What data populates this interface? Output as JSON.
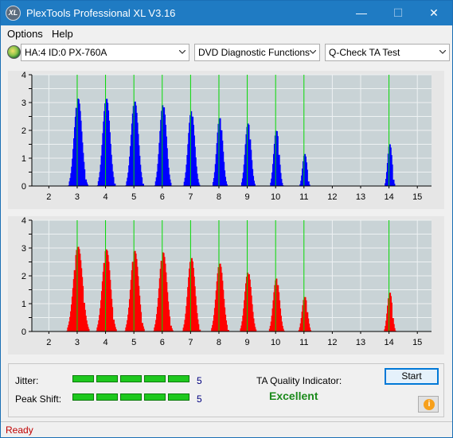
{
  "window": {
    "title": "PlexTools Professional XL V3.16",
    "app_icon_text": "XL",
    "minimize": "—",
    "maximize": "☐",
    "close": "✕"
  },
  "menu": {
    "items": [
      {
        "label": "Options"
      },
      {
        "label": "Help"
      }
    ]
  },
  "toolbar": {
    "drive": "HA:4 ID:0  PX-760A",
    "function": "DVD Diagnostic Functions",
    "test": "Q-Check TA Test"
  },
  "colors": {
    "upper_bars": "#0000ff",
    "lower_bars": "#ff0000",
    "markers": "#00d400",
    "plot_bg": "#c9d3d6"
  },
  "chart_data": [
    {
      "type": "bar",
      "title": "",
      "xlim": [
        1.4,
        15.5
      ],
      "ylim": [
        0,
        4
      ],
      "x_ticks": [
        2,
        3,
        4,
        5,
        6,
        7,
        8,
        9,
        10,
        11,
        12,
        13,
        14,
        15
      ],
      "y_ticks": [
        0,
        0.5,
        1,
        1.5,
        2,
        2.5,
        3,
        3.5,
        4
      ],
      "y_tick_labels": [
        "0",
        "",
        "1",
        "",
        "2",
        "",
        "3",
        "",
        "4"
      ],
      "markers": [
        3,
        4,
        5,
        6,
        7,
        8,
        9,
        10,
        11,
        14
      ],
      "peaks": [
        {
          "x": 3.0,
          "height": 3.2,
          "width": 0.32
        },
        {
          "x": 4.0,
          "height": 3.2,
          "width": 0.3
        },
        {
          "x": 5.0,
          "height": 3.1,
          "width": 0.3
        },
        {
          "x": 6.0,
          "height": 3.0,
          "width": 0.28
        },
        {
          "x": 7.0,
          "height": 2.75,
          "width": 0.27
        },
        {
          "x": 8.0,
          "height": 2.5,
          "width": 0.25
        },
        {
          "x": 9.0,
          "height": 2.3,
          "width": 0.24
        },
        {
          "x": 10.0,
          "height": 2.05,
          "width": 0.22
        },
        {
          "x": 11.0,
          "height": 1.2,
          "width": 0.18
        },
        {
          "x": 14.0,
          "height": 1.55,
          "width": 0.18
        }
      ]
    },
    {
      "type": "bar",
      "title": "",
      "xlim": [
        1.4,
        15.5
      ],
      "ylim": [
        0,
        4
      ],
      "x_ticks": [
        2,
        3,
        4,
        5,
        6,
        7,
        8,
        9,
        10,
        11,
        12,
        13,
        14,
        15
      ],
      "y_ticks": [
        0,
        0.5,
        1,
        1.5,
        2,
        2.5,
        3,
        3.5,
        4
      ],
      "y_tick_labels": [
        "0",
        "",
        "1",
        "",
        "2",
        "",
        "3",
        "",
        "4"
      ],
      "markers": [
        3,
        4,
        5,
        6,
        7,
        8,
        9,
        10,
        11,
        14
      ],
      "peaks": [
        {
          "x": 3.0,
          "height": 3.1,
          "width": 0.38
        },
        {
          "x": 4.0,
          "height": 3.0,
          "width": 0.34
        },
        {
          "x": 5.0,
          "height": 2.95,
          "width": 0.33
        },
        {
          "x": 6.0,
          "height": 2.9,
          "width": 0.32
        },
        {
          "x": 7.0,
          "height": 2.7,
          "width": 0.3
        },
        {
          "x": 8.0,
          "height": 2.5,
          "width": 0.3
        },
        {
          "x": 9.0,
          "height": 2.2,
          "width": 0.28
        },
        {
          "x": 10.0,
          "height": 1.95,
          "width": 0.26
        },
        {
          "x": 11.0,
          "height": 1.3,
          "width": 0.22
        },
        {
          "x": 14.0,
          "height": 1.45,
          "width": 0.2
        }
      ]
    }
  ],
  "bottom": {
    "jitter_label": "Jitter:",
    "jitter_value": "5",
    "jitter_level": 5,
    "peakshift_label": "Peak Shift:",
    "peakshift_value": "5",
    "peakshift_level": 5,
    "ta_label": "TA Quality Indicator:",
    "ta_value": "Excellent",
    "start_label": "Start",
    "info_icon": "i"
  },
  "status": {
    "text": "Ready"
  }
}
